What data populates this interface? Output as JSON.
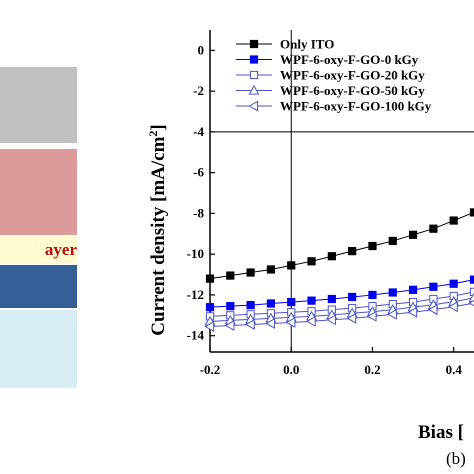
{
  "left_panel": {
    "layers": [
      {
        "name": "gray-layer",
        "color": "#c0c0c0"
      },
      {
        "name": "pink-layer",
        "color": "#dd9a9a"
      },
      {
        "name": "cream-layer",
        "color": "#fffbd0"
      },
      {
        "name": "blue-layer",
        "color": "#355f96"
      },
      {
        "name": "light-blue-layer",
        "color": "#d9edf5"
      }
    ],
    "partial_label": "ayer"
  },
  "panel_tag": "(b)",
  "chart_data": {
    "type": "line",
    "xlabel": "Bias [",
    "ylabel": "Current density [mA/cm",
    "ylabel_sup": "2",
    "ylabel_end": "]",
    "xlim": [
      -0.2,
      0.45
    ],
    "ylim": [
      -14.8,
      1
    ],
    "xticks": [
      "-0.2",
      "0.0",
      "0.2",
      "0.4"
    ],
    "xtick_values": [
      -0.2,
      0.0,
      0.2,
      0.4
    ],
    "yticks": [
      "0",
      "-2",
      "-4",
      "-6",
      "-8",
      "-10",
      "-12",
      "-14"
    ],
    "ytick_values": [
      0,
      -2,
      -4,
      -6,
      -8,
      -10,
      -12,
      -14
    ],
    "legend_position": "top-right",
    "series": [
      {
        "name": "Only ITO",
        "color": "#000000",
        "marker": "square-filled",
        "x": [
          -0.2,
          -0.15,
          -0.1,
          -0.05,
          0.0,
          0.05,
          0.1,
          0.15,
          0.2,
          0.25,
          0.3,
          0.35,
          0.4,
          0.45
        ],
        "y": [
          -11.2,
          -11.05,
          -10.9,
          -10.75,
          -10.55,
          -10.35,
          -10.1,
          -9.85,
          -9.6,
          -9.35,
          -9.05,
          -8.75,
          -8.35,
          -7.95
        ]
      },
      {
        "name": "WPF-6-oxy-F-GO-0 kGy",
        "color": "#0000ee",
        "marker": "square-filled",
        "x": [
          -0.2,
          -0.15,
          -0.1,
          -0.05,
          0.0,
          0.05,
          0.1,
          0.15,
          0.2,
          0.25,
          0.3,
          0.35,
          0.4,
          0.45
        ],
        "y": [
          -12.6,
          -12.55,
          -12.5,
          -12.42,
          -12.35,
          -12.28,
          -12.2,
          -12.1,
          -12.0,
          -11.88,
          -11.75,
          -11.6,
          -11.45,
          -11.25
        ]
      },
      {
        "name": "WPF-6-oxy-F-GO-20 kGy",
        "color": "#4b55c8",
        "marker": "square-open",
        "x": [
          -0.2,
          -0.15,
          -0.1,
          -0.05,
          0.0,
          0.05,
          0.1,
          0.15,
          0.2,
          0.25,
          0.3,
          0.35,
          0.4,
          0.45
        ],
        "y": [
          -13.05,
          -13.0,
          -12.95,
          -12.9,
          -12.85,
          -12.8,
          -12.72,
          -12.65,
          -12.55,
          -12.45,
          -12.35,
          -12.2,
          -12.05,
          -11.85
        ]
      },
      {
        "name": "WPF-6-oxy-F-GO-50 kGy",
        "color": "#4b55c8",
        "marker": "triangle-up-open",
        "x": [
          -0.2,
          -0.15,
          -0.1,
          -0.05,
          0.0,
          0.05,
          0.1,
          0.15,
          0.2,
          0.25,
          0.3,
          0.35,
          0.4,
          0.45
        ],
        "y": [
          -13.3,
          -13.25,
          -13.2,
          -13.15,
          -13.1,
          -13.05,
          -12.98,
          -12.9,
          -12.82,
          -12.72,
          -12.6,
          -12.48,
          -12.33,
          -12.15
        ]
      },
      {
        "name": "WPF-6-oxy-F-GO-100 kGy",
        "color": "#4b55c8",
        "marker": "triangle-left-open",
        "x": [
          -0.2,
          -0.15,
          -0.1,
          -0.05,
          0.0,
          0.05,
          0.1,
          0.15,
          0.2,
          0.25,
          0.3,
          0.35,
          0.4,
          0.45
        ],
        "y": [
          -13.55,
          -13.5,
          -13.45,
          -13.4,
          -13.35,
          -13.3,
          -13.22,
          -13.15,
          -13.05,
          -12.95,
          -12.85,
          -12.72,
          -12.58,
          -12.4
        ]
      }
    ]
  }
}
